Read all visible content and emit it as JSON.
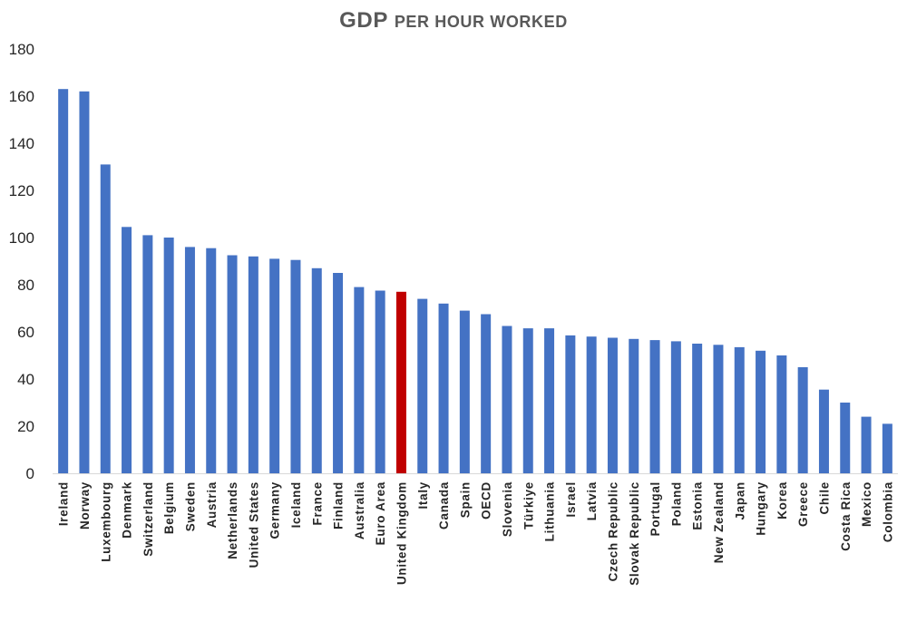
{
  "chart_data": {
    "type": "bar",
    "title": "GDP per hour worked",
    "xlabel": "",
    "ylabel": "",
    "ylim": [
      0,
      180
    ],
    "yticks": [
      "0",
      "20",
      "40",
      "60",
      "80",
      "100",
      "120",
      "140",
      "160",
      "180"
    ],
    "grid": false,
    "legend": "none",
    "bar_color": "#4472C4",
    "highlight_color": "#C00000",
    "highlight_category": "United Kingdom",
    "categories": [
      "Ireland",
      "Norway",
      "Luxembourg",
      "Denmark",
      "Switzerland",
      "Belgium",
      "Sweden",
      "Austria",
      "Netherlands",
      "United States",
      "Germany",
      "Iceland",
      "France",
      "Finland",
      "Australia",
      "Euro Area",
      "United Kingdom",
      "Italy",
      "Canada",
      "Spain",
      "OECD",
      "Slovenia",
      "Türkiye",
      "Lithuania",
      "Israel",
      "Latvia",
      "Czech Republic",
      "Slovak Republic",
      "Portugal",
      "Poland",
      "Estonia",
      "New Zealand",
      "Japan",
      "Hungary",
      "Korea",
      "Greece",
      "Chile",
      "Costa Rica",
      "Mexico",
      "Colombia"
    ],
    "values": [
      163,
      162,
      131,
      104.5,
      101,
      100,
      96,
      95.5,
      92.5,
      92,
      91,
      90.5,
      87,
      85,
      79,
      77.5,
      77,
      74,
      72,
      69,
      67.5,
      62.5,
      61.5,
      61.5,
      58.5,
      58,
      57.5,
      57,
      56.5,
      56,
      55,
      54.5,
      53.5,
      52,
      50,
      45,
      35.5,
      30,
      24,
      21
    ]
  }
}
